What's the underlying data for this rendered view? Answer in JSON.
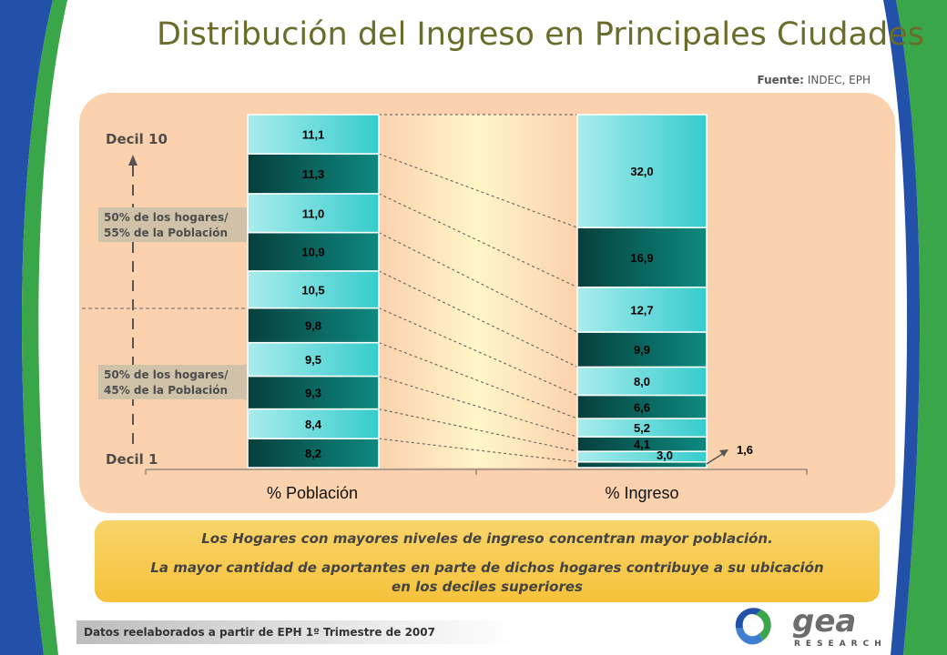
{
  "title": "Distribución del Ingreso en Principales Ciudades",
  "source_label": "Fuente:",
  "source_value": "INDEC, EPH",
  "decil_top": "Decil 10",
  "decil_bottom": "Decil 1",
  "groups": [
    {
      "line1": "50% de los hogares/",
      "line2": "55% de la Población"
    },
    {
      "line1": "50% de los hogares/",
      "line2": "45% de la Población"
    }
  ],
  "note": {
    "line1": "Los Hogares con mayores niveles de ingreso concentran mayor población.",
    "line2a": "La mayor cantidad de aportantes en parte de dichos hogares contribuye a su ubicación",
    "line2b": "en los deciles superiores"
  },
  "footer": "Datos reelaborados a partir de EPH 1º Trimestre de 2007",
  "logo": {
    "name": "gea",
    "sub": "RESEARCH"
  },
  "colors": {
    "light": "#5fd3d3",
    "dark": "#0a6b64",
    "title": "#6b6b2a",
    "panel": "#fbd2ad"
  },
  "chart_data": {
    "type": "bar",
    "stacked": true,
    "categories": [
      "% Población",
      "% Ingreso"
    ],
    "series_order": "Decil 1 (bottom) to Decil 10 (top)",
    "series": [
      {
        "values": [
          8.2,
          1.6
        ]
      },
      {
        "values": [
          8.4,
          3.0
        ]
      },
      {
        "values": [
          9.3,
          4.1
        ]
      },
      {
        "values": [
          9.5,
          5.2
        ]
      },
      {
        "values": [
          9.8,
          6.6
        ]
      },
      {
        "values": [
          10.5,
          8.0
        ]
      },
      {
        "values": [
          10.9,
          9.9
        ]
      },
      {
        "values": [
          11.0,
          12.7
        ]
      },
      {
        "values": [
          11.3,
          16.9
        ]
      },
      {
        "values": [
          11.1,
          32.0
        ]
      }
    ],
    "poblacion_labels": [
      "8,2",
      "8,4",
      "9,3",
      "9,5",
      "9,8",
      "10,5",
      "10,9",
      "11,0",
      "11,3",
      "11,1"
    ],
    "ingreso_labels": [
      "1,6",
      "3,0",
      "4,1",
      "5,2",
      "6,6",
      "8,0",
      "9,9",
      "12,7",
      "16,9",
      "32,0"
    ],
    "ylim": [
      0,
      100
    ]
  }
}
